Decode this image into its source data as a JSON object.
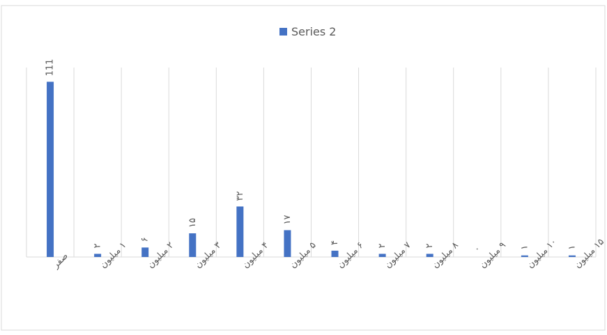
{
  "chart_data": {
    "type": "bar",
    "legend": "Series 2",
    "categories": [
      "صفر",
      "۱ میلیون",
      "۲ میلیون",
      "۳ میلیون",
      "۴ میلیون",
      "۵ میلیون",
      "۶ میلیون",
      "۷ میلیون",
      "۸ میلیون",
      "۹ میلیون",
      "۱۰ میلیون",
      "۱۵ میلیون"
    ],
    "values": [
      111,
      2,
      6,
      15,
      32,
      17,
      4,
      2,
      2,
      0,
      1,
      1
    ],
    "value_labels": [
      "111",
      "۲",
      "۶",
      "۱۵",
      "۳۲",
      "۱۷",
      "۴",
      "۲",
      "۲",
      "۰",
      "۱",
      "۱"
    ],
    "color": "#4472c4",
    "ylim": [
      0,
      120
    ],
    "grid": true
  }
}
